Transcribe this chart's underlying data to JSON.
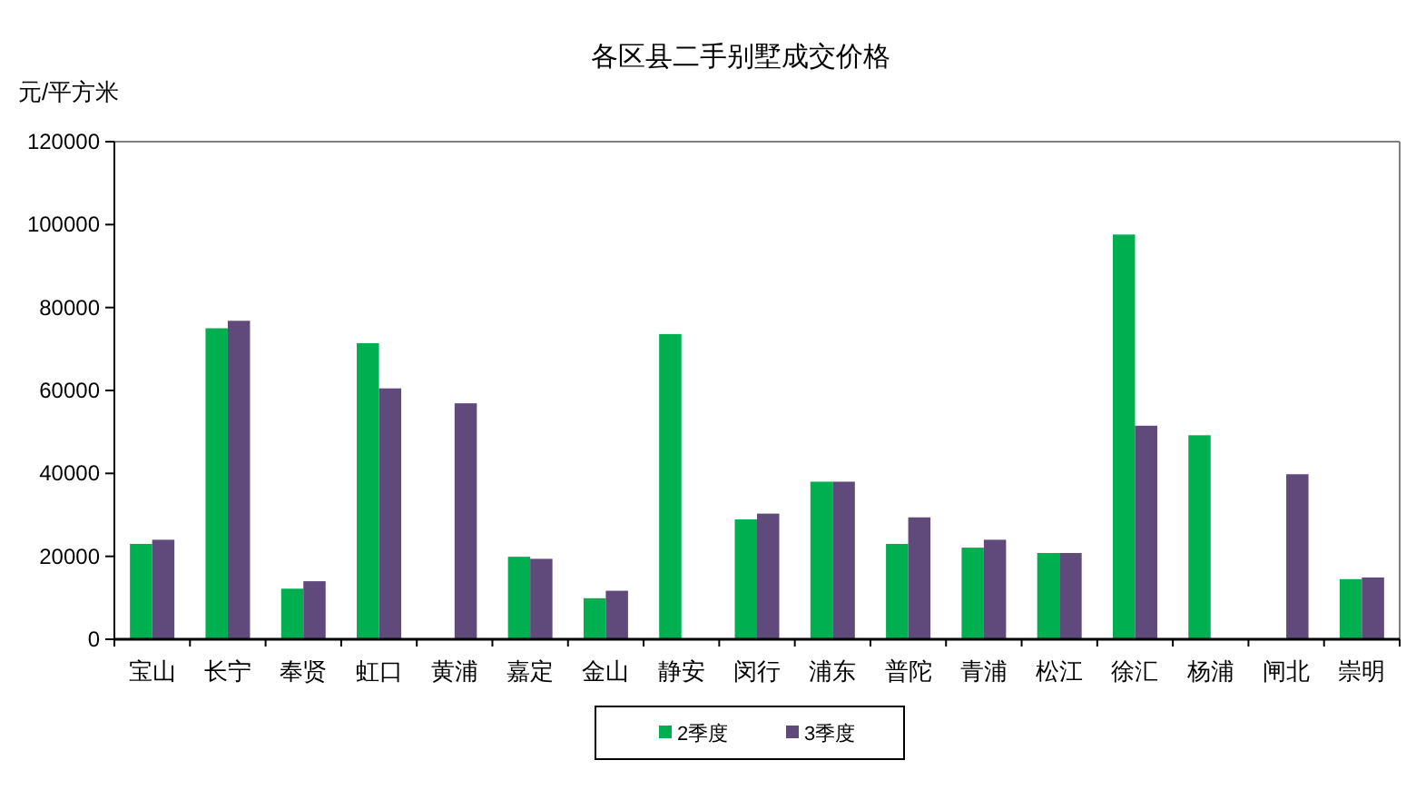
{
  "chart_data": {
    "type": "bar",
    "title": "各区县二手别墅成交价格",
    "ylabel": "元/平方米",
    "categories": [
      "宝山",
      "长宁",
      "奉贤",
      "虹口",
      "黄浦",
      "嘉定",
      "金山",
      "静安",
      "闵行",
      "浦东",
      "普陀",
      "青浦",
      "松江",
      "徐汇",
      "杨浦",
      "闸北",
      "崇明"
    ],
    "series": [
      {
        "name": "2季度",
        "color": "#00b050",
        "values": [
          23000,
          75000,
          12200,
          71400,
          null,
          19900,
          9900,
          73600,
          28900,
          38000,
          23000,
          22100,
          20800,
          97600,
          49200,
          null,
          14500
        ]
      },
      {
        "name": "3季度",
        "color": "#604a7b",
        "values": [
          24000,
          76800,
          14000,
          60500,
          56900,
          19400,
          11700,
          null,
          30300,
          38000,
          29400,
          24000,
          20800,
          51500,
          null,
          39800,
          14900
        ]
      }
    ],
    "ylim": [
      0,
      120000
    ],
    "yticks": [
      0,
      20000,
      40000,
      60000,
      80000,
      100000,
      120000
    ],
    "grid": false,
    "legend": "bottom"
  }
}
